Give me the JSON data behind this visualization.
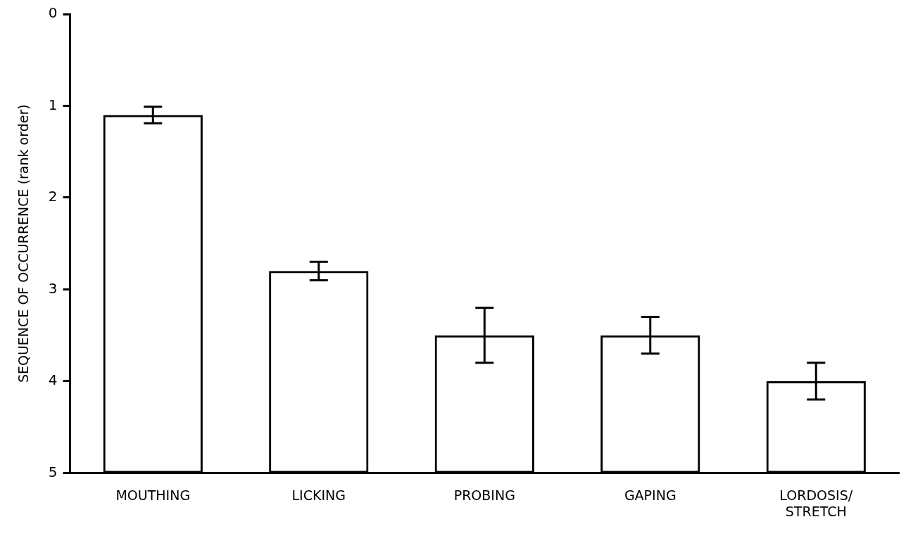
{
  "chart_data": {
    "type": "bar",
    "ylabel": "SEQUENCE OF OCCURRENCE (rank order)",
    "categories": [
      "MOUTHING",
      "LICKING",
      "PROBING",
      "GAPING",
      "LORDOSIS/\nSTRETCH"
    ],
    "base": [
      5,
      5,
      5,
      5,
      5
    ],
    "values": [
      -3.9,
      -2.2,
      -1.5,
      -1.5,
      -1.0
    ],
    "errors": [
      0.09,
      0.1,
      0.3,
      0.2,
      0.2
    ],
    "color": "#000000",
    "ylim": [
      5,
      0
    ],
    "yticks": [
      0,
      1,
      2,
      3,
      4,
      5
    ]
  }
}
